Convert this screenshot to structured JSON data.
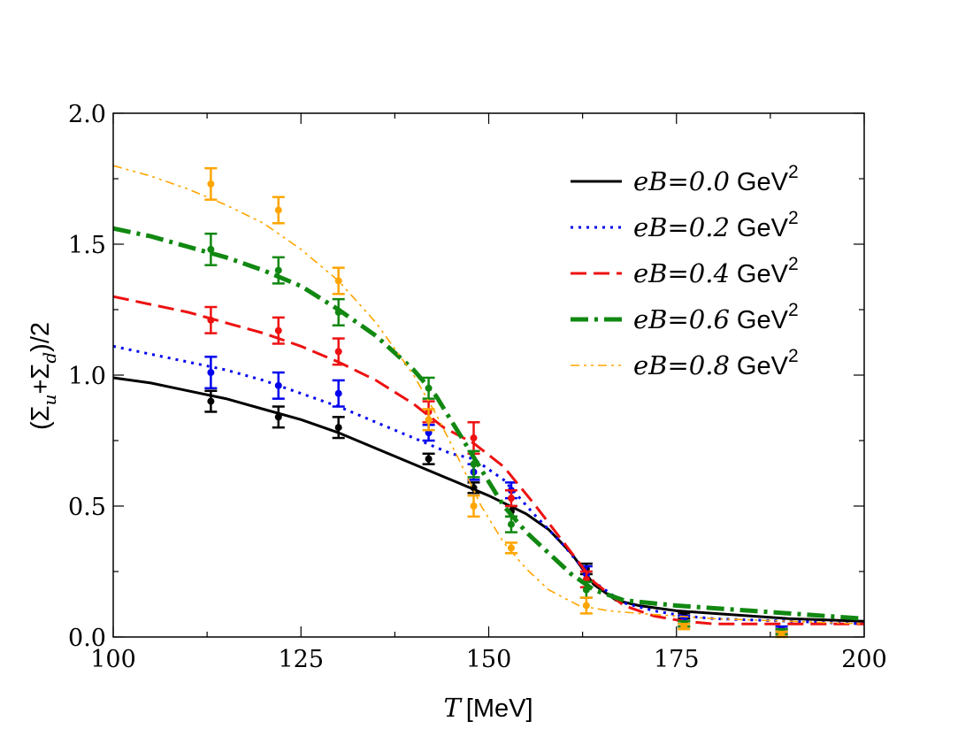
{
  "chart_data": {
    "type": "line",
    "xlabel": {
      "symbol": "T",
      "unit": "[MeV]"
    },
    "ylabel": {
      "open": "(",
      "sigma": "Σ",
      "sub_u": "u",
      "plus": "+",
      "sub_d": "d",
      "close": ")/2"
    },
    "xlim": [
      100,
      200
    ],
    "ylim": [
      0,
      2
    ],
    "x_ticks": [
      100,
      125,
      150,
      175,
      200
    ],
    "x_tick_labels": [
      "100",
      "125",
      "150",
      "175",
      "200"
    ],
    "y_ticks": [
      0,
      0.5,
      1,
      1.5,
      2
    ],
    "y_tick_labels": [
      "0.0",
      "0.5",
      "1.0",
      "1.5",
      "2.0"
    ],
    "grid": false,
    "legend_position": "top-right",
    "series": [
      {
        "name_var": "eB=0.0",
        "name_unit": "GeV",
        "name_exp": "2",
        "color": "#000000",
        "style": "solid",
        "curve": [
          [
            100,
            0.99
          ],
          [
            105,
            0.97
          ],
          [
            110,
            0.94
          ],
          [
            115,
            0.91
          ],
          [
            120,
            0.87
          ],
          [
            125,
            0.83
          ],
          [
            130,
            0.78
          ],
          [
            135,
            0.72
          ],
          [
            140,
            0.66
          ],
          [
            145,
            0.6
          ],
          [
            150,
            0.54
          ],
          [
            155,
            0.47
          ],
          [
            158,
            0.41
          ],
          [
            161,
            0.32
          ],
          [
            164,
            0.2
          ],
          [
            167,
            0.14
          ],
          [
            170,
            0.12
          ],
          [
            175,
            0.1
          ],
          [
            180,
            0.09
          ],
          [
            190,
            0.07
          ],
          [
            200,
            0.06
          ]
        ],
        "points": [
          {
            "x": 113,
            "y": 0.9,
            "err": 0.04
          },
          {
            "x": 122,
            "y": 0.84,
            "err": 0.04
          },
          {
            "x": 130,
            "y": 0.8,
            "err": 0.04
          },
          {
            "x": 142,
            "y": 0.68,
            "err": 0.02
          },
          {
            "x": 148,
            "y": 0.57,
            "err": 0.02
          },
          {
            "x": 153,
            "y": 0.48,
            "err": 0.02
          },
          {
            "x": 163,
            "y": 0.26,
            "err": 0.02
          },
          {
            "x": 176,
            "y": 0.08,
            "err": 0.01
          },
          {
            "x": 189,
            "y": 0.02,
            "err": 0.01
          }
        ]
      },
      {
        "name_var": "eB=0.2",
        "name_unit": "GeV",
        "name_exp": "2",
        "color": "#0000ee",
        "style": "dotted",
        "curve": [
          [
            100,
            1.11
          ],
          [
            105,
            1.08
          ],
          [
            110,
            1.05
          ],
          [
            115,
            1.02
          ],
          [
            120,
            0.98
          ],
          [
            125,
            0.93
          ],
          [
            130,
            0.88
          ],
          [
            135,
            0.82
          ],
          [
            140,
            0.76
          ],
          [
            145,
            0.7
          ],
          [
            148,
            0.68
          ],
          [
            152,
            0.6
          ],
          [
            156,
            0.47
          ],
          [
            160,
            0.35
          ],
          [
            164,
            0.21
          ],
          [
            168,
            0.13
          ],
          [
            172,
            0.1
          ],
          [
            176,
            0.08
          ],
          [
            180,
            0.07
          ],
          [
            190,
            0.06
          ],
          [
            200,
            0.05
          ]
        ],
        "points": [
          {
            "x": 113,
            "y": 1.01,
            "err": 0.06
          },
          {
            "x": 122,
            "y": 0.96,
            "err": 0.05
          },
          {
            "x": 130,
            "y": 0.93,
            "err": 0.05
          },
          {
            "x": 142,
            "y": 0.78,
            "err": 0.03
          },
          {
            "x": 148,
            "y": 0.63,
            "err": 0.03
          },
          {
            "x": 153,
            "y": 0.56,
            "err": 0.03
          },
          {
            "x": 163,
            "y": 0.24,
            "err": 0.03
          },
          {
            "x": 176,
            "y": 0.07,
            "err": 0.01
          },
          {
            "x": 189,
            "y": 0.03,
            "err": 0.01
          }
        ]
      },
      {
        "name_var": "eB=0.4",
        "name_unit": "GeV",
        "name_exp": "2",
        "color": "#ee1111",
        "style": "dashed",
        "curve": [
          [
            100,
            1.3
          ],
          [
            105,
            1.27
          ],
          [
            110,
            1.24
          ],
          [
            115,
            1.2
          ],
          [
            120,
            1.16
          ],
          [
            125,
            1.11
          ],
          [
            130,
            1.05
          ],
          [
            135,
            0.98
          ],
          [
            140,
            0.89
          ],
          [
            144,
            0.8
          ],
          [
            148,
            0.74
          ],
          [
            152,
            0.65
          ],
          [
            156,
            0.51
          ],
          [
            160,
            0.36
          ],
          [
            164,
            0.21
          ],
          [
            168,
            0.12
          ],
          [
            172,
            0.08
          ],
          [
            176,
            0.06
          ],
          [
            180,
            0.05
          ],
          [
            190,
            0.05
          ],
          [
            200,
            0.05
          ]
        ],
        "points": [
          {
            "x": 113,
            "y": 1.21,
            "err": 0.05
          },
          {
            "x": 122,
            "y": 1.17,
            "err": 0.05
          },
          {
            "x": 130,
            "y": 1.09,
            "err": 0.05
          },
          {
            "x": 142,
            "y": 0.86,
            "err": 0.04
          },
          {
            "x": 148,
            "y": 0.76,
            "err": 0.06
          },
          {
            "x": 153,
            "y": 0.53,
            "err": 0.03
          },
          {
            "x": 163,
            "y": 0.22,
            "err": 0.03
          },
          {
            "x": 176,
            "y": 0.05,
            "err": 0.01
          },
          {
            "x": 189,
            "y": 0.02,
            "err": 0.01
          }
        ]
      },
      {
        "name_var": "eB=0.6",
        "name_unit": "GeV",
        "name_exp": "2",
        "color": "#118811",
        "style": "dashdot",
        "curve": [
          [
            100,
            1.56
          ],
          [
            105,
            1.53
          ],
          [
            110,
            1.49
          ],
          [
            115,
            1.45
          ],
          [
            120,
            1.4
          ],
          [
            125,
            1.34
          ],
          [
            130,
            1.25
          ],
          [
            135,
            1.15
          ],
          [
            140,
            1.02
          ],
          [
            143,
            0.92
          ],
          [
            146,
            0.78
          ],
          [
            149,
            0.64
          ],
          [
            152,
            0.5
          ],
          [
            155,
            0.4
          ],
          [
            158,
            0.32
          ],
          [
            161,
            0.24
          ],
          [
            164,
            0.18
          ],
          [
            168,
            0.14
          ],
          [
            175,
            0.12
          ],
          [
            185,
            0.1
          ],
          [
            200,
            0.07
          ]
        ],
        "points": [
          {
            "x": 113,
            "y": 1.48,
            "err": 0.06
          },
          {
            "x": 122,
            "y": 1.4,
            "err": 0.05
          },
          {
            "x": 130,
            "y": 1.24,
            "err": 0.05
          },
          {
            "x": 142,
            "y": 0.95,
            "err": 0.04
          },
          {
            "x": 148,
            "y": 0.66,
            "err": 0.05
          },
          {
            "x": 153,
            "y": 0.43,
            "err": 0.03
          },
          {
            "x": 163,
            "y": 0.18,
            "err": 0.03
          },
          {
            "x": 176,
            "y": 0.05,
            "err": 0.01
          },
          {
            "x": 189,
            "y": 0.02,
            "err": 0.01
          }
        ]
      },
      {
        "name_var": "eB=0.8",
        "name_unit": "GeV",
        "name_exp": "2",
        "color": "#ffa500",
        "style": "dashdotdot",
        "curve": [
          [
            100,
            1.8
          ],
          [
            105,
            1.76
          ],
          [
            110,
            1.71
          ],
          [
            115,
            1.65
          ],
          [
            120,
            1.58
          ],
          [
            125,
            1.48
          ],
          [
            130,
            1.36
          ],
          [
            135,
            1.2
          ],
          [
            140,
            1.0
          ],
          [
            143,
            0.85
          ],
          [
            146,
            0.68
          ],
          [
            149,
            0.5
          ],
          [
            152,
            0.36
          ],
          [
            155,
            0.26
          ],
          [
            158,
            0.18
          ],
          [
            162,
            0.12
          ],
          [
            166,
            0.1
          ],
          [
            170,
            0.09
          ],
          [
            180,
            0.07
          ],
          [
            190,
            0.06
          ],
          [
            200,
            0.05
          ]
        ],
        "points": [
          {
            "x": 113,
            "y": 1.73,
            "err": 0.06
          },
          {
            "x": 122,
            "y": 1.63,
            "err": 0.05
          },
          {
            "x": 130,
            "y": 1.36,
            "err": 0.05
          },
          {
            "x": 142,
            "y": 0.83,
            "err": 0.04
          },
          {
            "x": 148,
            "y": 0.5,
            "err": 0.04
          },
          {
            "x": 153,
            "y": 0.34,
            "err": 0.02
          },
          {
            "x": 163,
            "y": 0.12,
            "err": 0.03
          },
          {
            "x": 176,
            "y": 0.04,
            "err": 0.01
          },
          {
            "x": 189,
            "y": 0.01,
            "err": 0.01
          }
        ]
      }
    ]
  }
}
